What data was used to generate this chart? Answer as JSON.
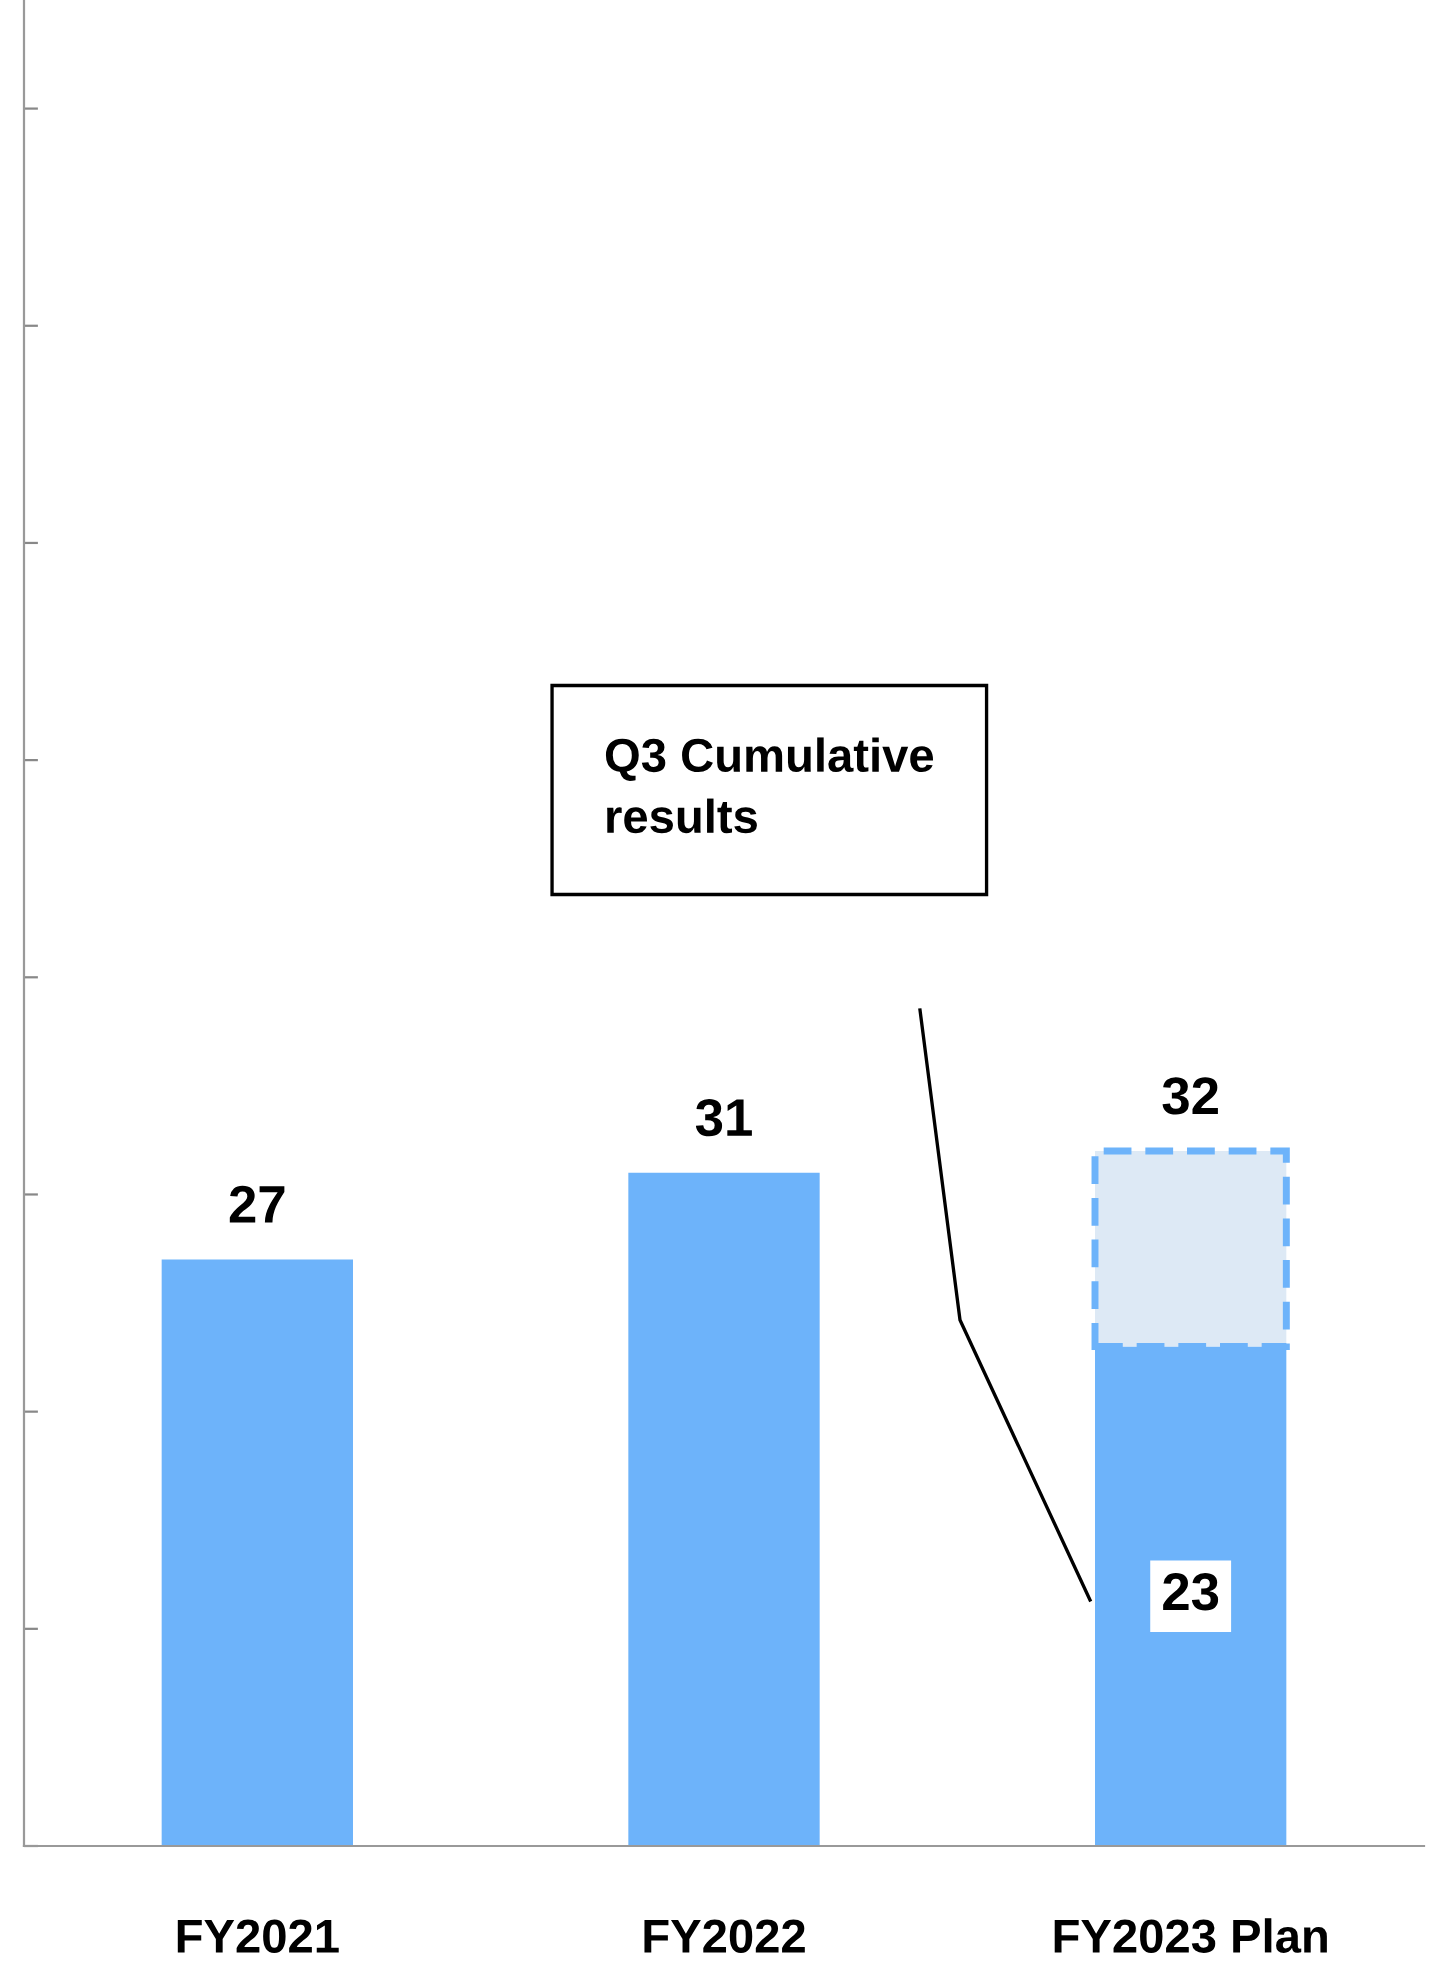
{
  "chart_data": {
    "type": "bar",
    "stacked": true,
    "categories": [
      "FY2021",
      "FY2022",
      "FY2023 Plan"
    ],
    "series": [
      {
        "color": "#6db3fa",
        "values": [
          27,
          31,
          23
        ],
        "value_labels": [
          null,
          null,
          "23"
        ]
      },
      {
        "color": "#dde9f5",
        "values": [
          null,
          null,
          9
        ],
        "line_style": "dashed"
      }
    ],
    "totals": [
      "27",
      "31",
      "32"
    ],
    "ylim": [
      0,
      85
    ],
    "yticks": [
      {
        "value": 0,
        "label": null
      },
      {
        "value": 10,
        "label": null
      },
      {
        "value": 20,
        "label": null
      },
      {
        "value": 30,
        "label": null
      },
      {
        "value": 40,
        "label": null
      },
      {
        "value": 50,
        "label": null
      },
      {
        "value": 60,
        "label": null
      },
      {
        "value": 70,
        "label": null
      },
      {
        "value": 80,
        "label": null
      }
    ],
    "annotations": [
      "Q3 Cumulative\nresults"
    ],
    "grid": false
  }
}
